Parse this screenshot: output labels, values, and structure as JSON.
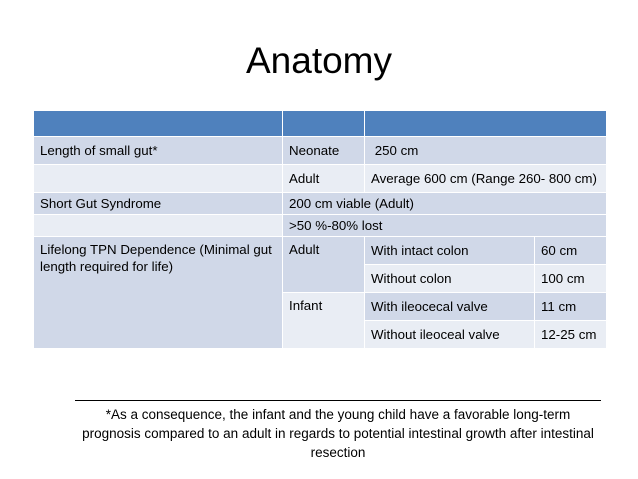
{
  "title": "Anatomy",
  "table": {
    "rows": {
      "length_label": "Length of small gut*",
      "neonate": "Neonate",
      "neonate_value": "250 cm",
      "adult": "Adult",
      "adult_value": "Average 600 cm (Range 260- 800 cm)",
      "sgs_label": "Short Gut Syndrome",
      "sgs_value1": "200 cm viable (Adult)",
      "sgs_value2": ">50 %-80% lost",
      "tpn_label": "Lifelong TPN Dependence (Minimal gut length required for life)",
      "tpn_adult": "Adult",
      "tpn_infant": "Infant",
      "intact_colon": "With intact colon",
      "intact_colon_value": "60 cm",
      "without_colon": "Without colon",
      "without_colon_value": "100 cm",
      "ileocecal": "With ileocecal valve",
      "ileocecal_value": "11 cm",
      "without_ileoceal": "Without ileoceal valve",
      "without_ileoceal_value": "12-25 cm"
    }
  },
  "footnote": "*As a consequence, the infant and the young child have a favorable long-term prognosis compared to an adult in regards to potential intestinal growth after intestinal resection"
}
